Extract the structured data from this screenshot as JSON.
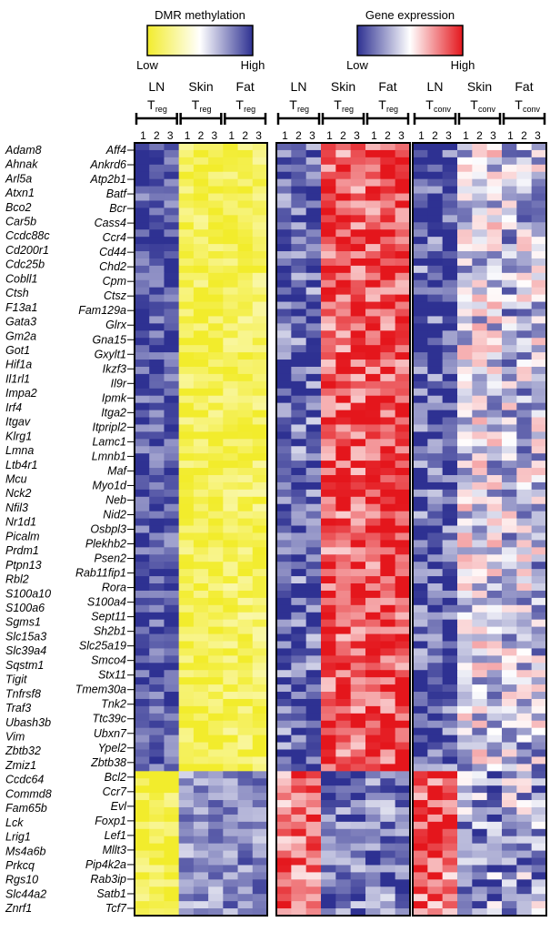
{
  "chart_data": [
    {
      "type": "heatmap",
      "panel": "DMR methylation",
      "scale": {
        "title": "DMR methylation",
        "low_label": "Low",
        "high_label": "High",
        "colors": [
          "#f2ec2c",
          "#ffffff",
          "#2e3192"
        ]
      },
      "groups": [
        {
          "main": "LN",
          "sub": "reg"
        },
        {
          "main": "Skin",
          "sub": "reg"
        },
        {
          "main": "Fat",
          "sub": "reg"
        }
      ],
      "replicates": [
        "1",
        "2",
        "3"
      ],
      "summary": {
        "upper_block": {
          "LN_Treg": 0.9,
          "Skin_Treg": 0.08,
          "Fat_Treg": 0.12
        },
        "lower_block": {
          "LN_Treg": 0.08,
          "Skin_Treg": 0.75,
          "Fat_Treg": 0.78
        }
      }
    },
    {
      "type": "heatmap",
      "panel": "Gene expression",
      "scale": {
        "title": "Gene expression",
        "low_label": "Low",
        "high_label": "High",
        "colors": [
          "#2e3192",
          "#ffffff",
          "#e4161c"
        ]
      },
      "groups": [
        {
          "main": "LN",
          "sub": "reg"
        },
        {
          "main": "Skin",
          "sub": "reg"
        },
        {
          "main": "Fat",
          "sub": "reg"
        },
        {
          "main": "LN",
          "sub": "conv"
        },
        {
          "main": "Skin",
          "sub": "conv"
        },
        {
          "main": "Fat",
          "sub": "conv"
        }
      ],
      "replicates": [
        "1",
        "2",
        "3"
      ],
      "summary": {
        "upper_block": {
          "LN_Treg": 0.15,
          "Skin_Treg": 0.85,
          "Fat_Treg": 0.88,
          "LN_Tconv": 0.08,
          "Skin_Tconv": 0.4,
          "Fat_Tconv": 0.35
        },
        "lower_block": {
          "LN_Treg": 0.8,
          "Skin_Treg": 0.15,
          "Fat_Treg": 0.18,
          "LN_Tconv": 0.85,
          "Skin_Tconv": 0.25,
          "Fat_Tconv": 0.3
        }
      }
    }
  ],
  "genes_left": [
    "Adam8",
    "Ahnak",
    "Arl5a",
    "Atxn1",
    "Bco2",
    "Car5b",
    "Ccdc88c",
    "Cd200r1",
    "Cdc25b",
    "Cobll1",
    "Ctsh",
    "F13a1",
    "Gata3",
    "Gm2a",
    "Got1",
    "Hif1a",
    "Il1rl1",
    "Impa2",
    "Irf4",
    "Itgav",
    "Klrg1",
    "Lmna",
    "Ltb4r1",
    "Mcu",
    "Nck2",
    "Nfil3",
    "Nr1d1",
    "Picalm",
    "Prdm1",
    "Ptpn13",
    "Rbl2",
    "S100a10",
    "S100a6",
    "Sgms1",
    "Slc15a3",
    "Slc39a4",
    "Sqstm1",
    "Tigit",
    "Tnfrsf8",
    "Traf3",
    "Ubash3b",
    "Vim",
    "Zbtb32",
    "Zmiz1",
    "Ccdc64",
    "Commd8",
    "Fam65b",
    "Lck",
    "Lrig1",
    "Ms4a6b",
    "Prkcq",
    "Rgs10",
    "Slc44a2",
    "Znrf1"
  ],
  "genes_right": [
    "Aff4",
    "Ankrd6",
    "Atp2b1",
    "Batf",
    "Bcr",
    "Cass4",
    "Ccr4",
    "Cd44",
    "Chd2",
    "Cpm",
    "Ctsz",
    "Fam129a",
    "Glrx",
    "Gna15",
    "Gxylt1",
    "Ikzf3",
    "Il9r",
    "Ipmk",
    "Itga2",
    "Itpripl2",
    "Lamc1",
    "Lmnb1",
    "Maf",
    "Myo1d",
    "Neb",
    "Nid2",
    "Osbpl3",
    "Plekhb2",
    "Psen2",
    "Rab11fip1",
    "Rora",
    "S100a4",
    "Sept11",
    "Sh2b1",
    "Slc25a19",
    "Smco4",
    "Stx11",
    "Tmem30a",
    "Tnk2",
    "Ttc39c",
    "Ubxn7",
    "Ypel2",
    "Zbtb38",
    "Bcl2",
    "Ccr7",
    "Evl",
    "Foxp1",
    "Lef1",
    "Mllt3",
    "Pip4k2a",
    "Rab3ip",
    "Satb1",
    "Tcf7"
  ]
}
